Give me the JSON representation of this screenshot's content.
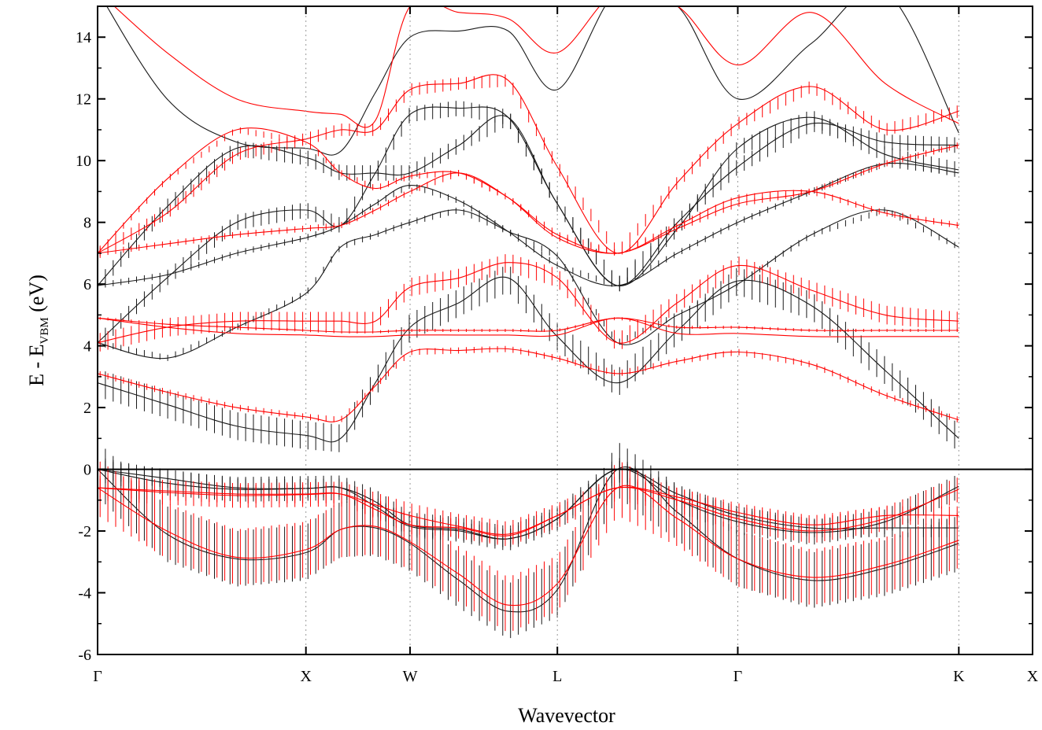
{
  "chart_data": {
    "type": "line",
    "title": "",
    "xlabel": "Wavevector",
    "ylabel": {
      "main": "E - E",
      "subscript": "VBM",
      "unit": " (eV)"
    },
    "ylim": [
      -6,
      15
    ],
    "yticks": [
      -6,
      -4,
      -2,
      0,
      2,
      4,
      6,
      8,
      10,
      12,
      14
    ],
    "k_points": [
      {
        "label": "Γ",
        "x": 0.0
      },
      {
        "label": "X",
        "x": 1.0
      },
      {
        "label": "W",
        "x": 1.5
      },
      {
        "label": "L",
        "x": 2.207
      },
      {
        "label": "Γ",
        "x": 3.073
      },
      {
        "label": "K",
        "x": 4.134
      },
      {
        "label": "X",
        "x": 4.488
      }
    ],
    "xlim": [
      0,
      4.488
    ],
    "grid": false,
    "colors": {
      "series_a": "#1a1a1a",
      "series_b": "#ff0000",
      "vbm_line": "#000000"
    },
    "series": [
      {
        "color": "black",
        "bands": [
          {
            "y": [
              -0.0,
              -2.1,
              -2.9,
              -2.7,
              -1.95,
              -1.9,
              -2.4,
              -3.6,
              -4.6,
              -3.9,
              -0.0,
              -1.4,
              -2.9,
              -3.6,
              -3.2,
              -2.4
            ],
            "err": 0.9
          },
          {
            "y": [
              -0.0,
              -0.45,
              -0.65,
              -0.62,
              -0.6,
              -1.05,
              -1.8,
              -1.95,
              -2.25,
              -1.6,
              -0.0,
              -1.0,
              -1.7,
              -2.05,
              -1.7,
              -0.55
            ],
            "err": 0.4
          },
          {
            "y": [
              -0.0,
              -0.3,
              -0.6,
              -0.62,
              -0.6,
              -1.2,
              -1.85,
              -2.0,
              -2.25,
              -1.6,
              -0.0,
              -0.8,
              -1.5,
              -1.9,
              -1.9,
              -1.9
            ],
            "err": 0.3
          },
          {
            "y": [
              2.8,
              2.1,
              1.4,
              1.1,
              1.0,
              2.8,
              4.6,
              5.4,
              6.2,
              4.3,
              2.8,
              4.5,
              6.1,
              5.3,
              3.2,
              1.0
            ],
            "err": 0.45
          },
          {
            "y": [
              4.1,
              3.6,
              4.6,
              5.7,
              7.2,
              7.6,
              8.0,
              8.4,
              7.7,
              6.9,
              4.1,
              5.0,
              6.0,
              7.6,
              8.4,
              7.2
            ],
            "err": 0.1
          },
          {
            "y": [
              5.95,
              6.3,
              7.0,
              7.5,
              7.9,
              8.6,
              9.2,
              8.7,
              7.7,
              6.6,
              5.95,
              7.0,
              8.0,
              9.0,
              9.9,
              9.6
            ],
            "err": 0.1
          },
          {
            "y": [
              5.95,
              8.5,
              10.4,
              10.1,
              9.6,
              9.6,
              9.6,
              10.5,
              11.4,
              8.6,
              5.95,
              7.8,
              10.4,
              11.4,
              10.2,
              9.7
            ],
            "err": 0.25
          },
          {
            "y": [
              4.1,
              6.2,
              8.0,
              8.4,
              7.9,
              9.6,
              11.5,
              11.7,
              11.4,
              8.6,
              5.95,
              8.0,
              9.8,
              11.2,
              10.6,
              10.5
            ],
            "err": 0.25
          },
          {
            "y": [
              15.5,
              12.0,
              10.6,
              10.4,
              10.3,
              12.2,
              14.0,
              14.2,
              14.2,
              12.3,
              15.5,
              15.0,
              12.0,
              13.8,
              15.5,
              10.9
            ],
            "err": 0.0
          }
        ]
      },
      {
        "color": "red",
        "bands": [
          {
            "y": [
              -0.6,
              -2.0,
              -2.85,
              -2.6,
              -1.95,
              -1.85,
              -2.35,
              -3.4,
              -4.4,
              -3.7,
              -0.6,
              -1.6,
              -2.9,
              -3.5,
              -3.1,
              -2.3
            ],
            "err": 0.9
          },
          {
            "y": [
              -0.6,
              -0.75,
              -0.85,
              -0.82,
              -0.8,
              -1.15,
              -1.5,
              -1.85,
              -2.1,
              -1.5,
              -0.6,
              -1.0,
              -1.6,
              -2.0,
              -1.6,
              -0.65
            ],
            "err": 0.4
          },
          {
            "y": [
              -0.6,
              -0.7,
              -0.8,
              -0.8,
              -0.8,
              -1.3,
              -1.8,
              -1.9,
              -2.15,
              -1.5,
              -0.6,
              -0.9,
              -1.4,
              -1.8,
              -1.5,
              -1.5
            ],
            "err": 0.3
          },
          {
            "y": [
              3.1,
              2.5,
              2.0,
              1.7,
              1.6,
              2.7,
              3.8,
              3.85,
              3.9,
              3.6,
              3.1,
              3.5,
              3.8,
              3.4,
              2.4,
              1.6
            ],
            "err": 0.1
          },
          {
            "y": [
              4.1,
              4.6,
              4.8,
              4.8,
              4.8,
              4.8,
              5.9,
              6.2,
              6.7,
              6.2,
              4.1,
              5.4,
              6.6,
              5.8,
              5.0,
              4.8
            ],
            "err": 0.3
          },
          {
            "y": [
              4.9,
              4.7,
              4.6,
              4.5,
              4.45,
              4.45,
              4.5,
              4.5,
              4.5,
              4.5,
              4.9,
              4.6,
              4.6,
              4.5,
              4.5,
              4.5
            ],
            "err": 0.05
          },
          {
            "y": [
              4.9,
              4.6,
              4.4,
              4.35,
              4.3,
              4.3,
              4.35,
              4.35,
              4.35,
              4.35,
              4.9,
              4.4,
              4.4,
              4.3,
              4.3,
              4.3
            ],
            "err": 0.0
          },
          {
            "y": [
              7.0,
              7.3,
              7.6,
              7.8,
              7.9,
              8.4,
              9.0,
              9.6,
              8.8,
              7.5,
              7.0,
              7.8,
              8.6,
              9.0,
              9.9,
              10.5
            ],
            "err": 0.1
          },
          {
            "y": [
              7.0,
              9.4,
              11.0,
              10.6,
              9.6,
              9.1,
              9.5,
              9.6,
              8.8,
              7.6,
              7.0,
              7.9,
              8.8,
              9.0,
              8.3,
              7.9
            ],
            "err": 0.1
          },
          {
            "y": [
              7.0,
              8.3,
              10.2,
              10.7,
              11.0,
              11.0,
              12.3,
              12.5,
              12.6,
              9.8,
              7.0,
              9.3,
              11.2,
              12.4,
              11.0,
              11.6
            ],
            "err": 0.2
          },
          {
            "y": [
              15.5,
              13.5,
              12.0,
              11.6,
              11.5,
              11.3,
              15.0,
              14.8,
              14.6,
              13.5,
              15.5,
              15.0,
              13.1,
              14.8,
              12.5,
              11.2
            ],
            "err": 0.0
          }
        ]
      }
    ]
  }
}
